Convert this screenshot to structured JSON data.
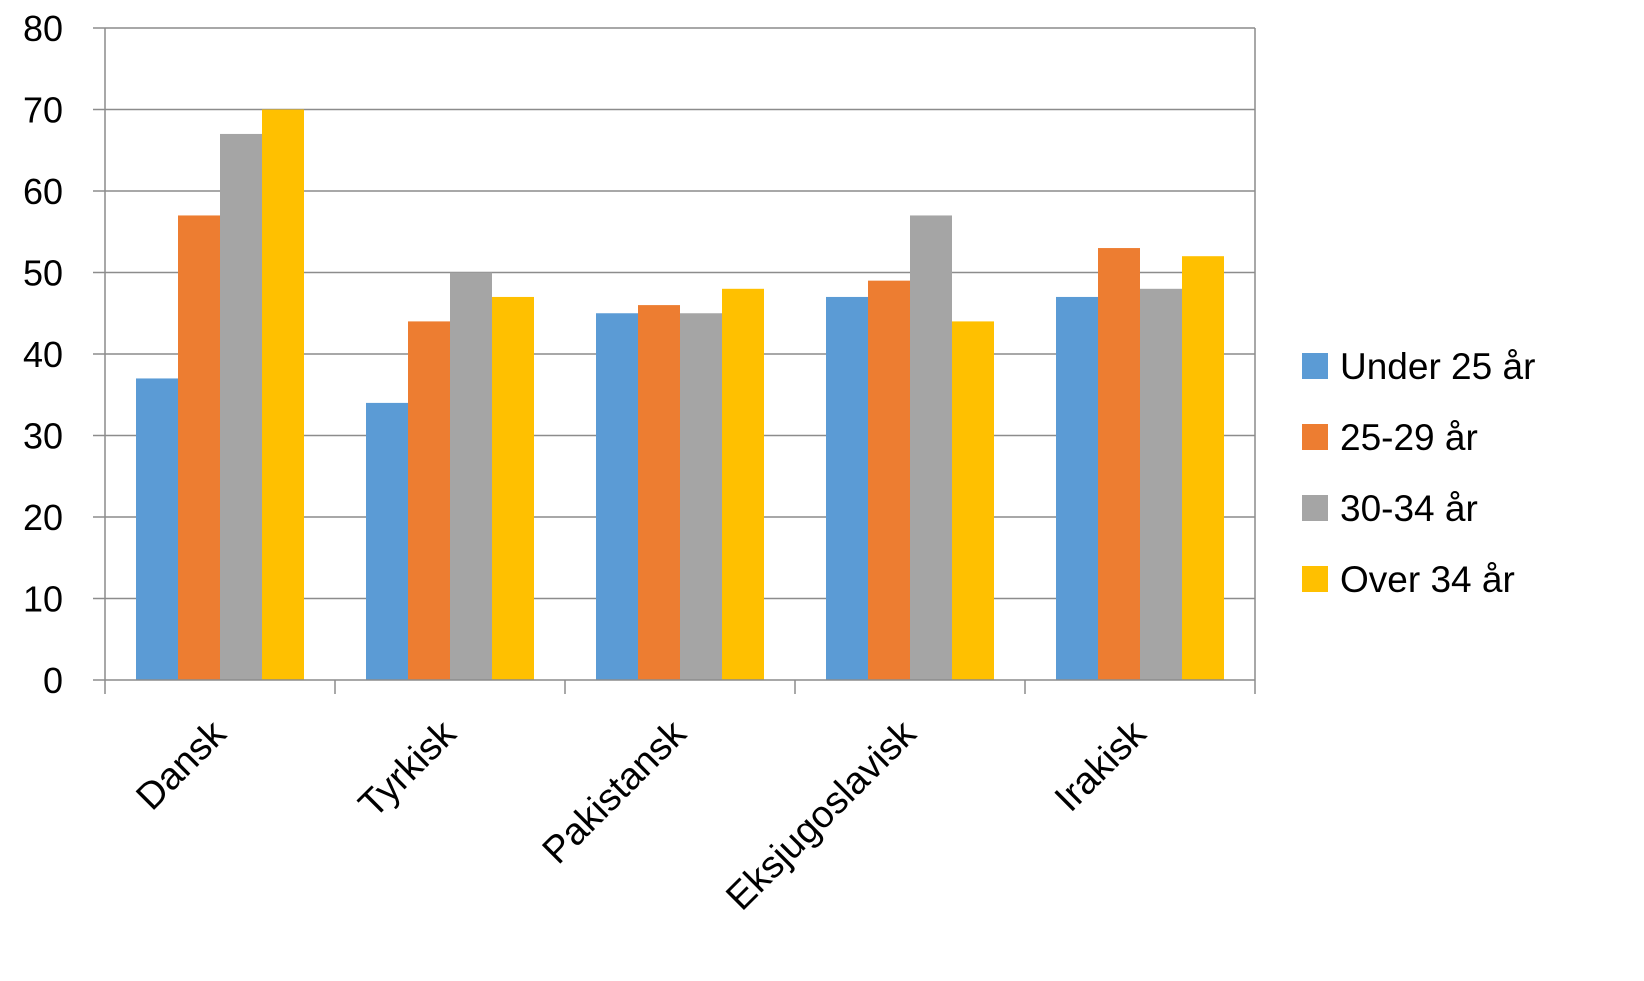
{
  "chart_data": {
    "type": "bar",
    "title": "",
    "xlabel": "",
    "ylabel": "",
    "ylim": [
      0,
      80
    ],
    "yticks": [
      0,
      10,
      20,
      30,
      40,
      50,
      60,
      70,
      80
    ],
    "grid": true,
    "legend_position": "right",
    "categories": [
      "Dansk",
      "Tyrkisk",
      "Pakistansk",
      "Eksjugoslavisk",
      "Irakisk"
    ],
    "series": [
      {
        "name": "Under 25 år",
        "color": "#5B9BD5",
        "values": [
          37,
          34,
          45,
          47,
          47
        ]
      },
      {
        "name": "25-29 år",
        "color": "#ED7D31",
        "values": [
          57,
          44,
          46,
          49,
          53
        ]
      },
      {
        "name": "30-34 år",
        "color": "#A5A5A5",
        "values": [
          67,
          50,
          45,
          57,
          48
        ]
      },
      {
        "name": "Over 34 år",
        "color": "#FFC000",
        "values": [
          70,
          47,
          48,
          44,
          52
        ]
      }
    ]
  }
}
